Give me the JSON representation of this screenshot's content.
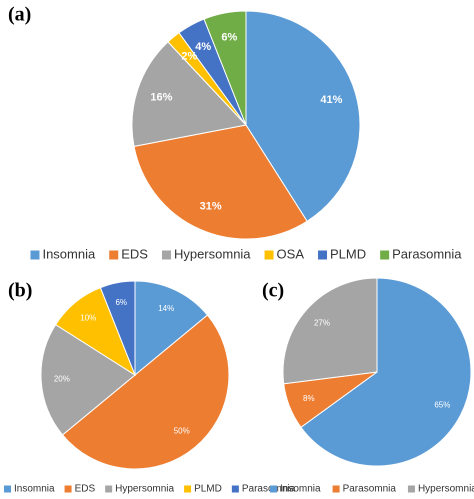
{
  "chart_data": [
    {
      "type": "pie",
      "title": "(a)",
      "categories": [
        "Insomnia",
        "EDS",
        "Hypersomnia",
        "OSA",
        "PLMD",
        "Parasomnia"
      ],
      "values": [
        41,
        31,
        16,
        2,
        4,
        6
      ],
      "value_labels": [
        "41%",
        "31%",
        "16%",
        "2%",
        "4%",
        "6%"
      ],
      "colors": [
        "#5b9bd5",
        "#ed7d31",
        "#a5a5a5",
        "#ffc000",
        "#4472c4",
        "#70ad47"
      ]
    },
    {
      "type": "pie",
      "title": "(b)",
      "categories": [
        "Insomnia",
        "EDS",
        "Hypersomnia",
        "PLMD",
        "Parasomnia"
      ],
      "values": [
        14,
        50,
        20,
        10,
        6
      ],
      "value_labels": [
        "14%",
        "50%",
        "20%",
        "10%",
        "6%"
      ],
      "colors": [
        "#5b9bd5",
        "#ed7d31",
        "#a5a5a5",
        "#ffc000",
        "#4472c4"
      ]
    },
    {
      "type": "pie",
      "title": "(c)",
      "categories": [
        "Insomnia",
        "Parasomnia",
        "Hypersomnia"
      ],
      "values": [
        65,
        8,
        27
      ],
      "value_labels": [
        "65%",
        "8%",
        "27%"
      ],
      "colors": [
        "#5b9bd5",
        "#ed7d31",
        "#a5a5a5"
      ]
    }
  ]
}
